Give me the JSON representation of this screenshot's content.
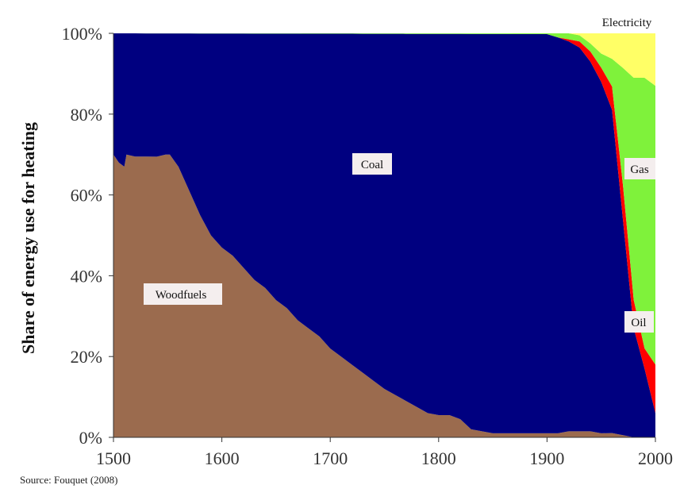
{
  "chart_data": {
    "type": "area",
    "stacked": true,
    "percent": true,
    "ylabel": "Share of energy use for heating",
    "xlim": [
      1500,
      2000
    ],
    "ylim": [
      0,
      100
    ],
    "x_ticks": [
      1500,
      1600,
      1700,
      1800,
      1900,
      2000
    ],
    "y_ticks": [
      0,
      20,
      40,
      60,
      80,
      100
    ],
    "y_tick_labels": [
      "0%",
      "20%",
      "40%",
      "60%",
      "80%",
      "100%"
    ],
    "grid": false,
    "source": "Source: Fouquet (2008)",
    "series": [
      {
        "name": "Woodfuels",
        "color": "#9b6b4e",
        "points": [
          [
            1500,
            70
          ],
          [
            1505,
            68
          ],
          [
            1510,
            67
          ],
          [
            1512,
            70
          ],
          [
            1520,
            69.5
          ],
          [
            1530,
            69.5
          ],
          [
            1540,
            69.5
          ],
          [
            1548,
            70
          ],
          [
            1552,
            70
          ],
          [
            1560,
            67
          ],
          [
            1570,
            61
          ],
          [
            1580,
            55
          ],
          [
            1590,
            50
          ],
          [
            1600,
            47
          ],
          [
            1610,
            45
          ],
          [
            1620,
            42
          ],
          [
            1630,
            39
          ],
          [
            1640,
            37
          ],
          [
            1650,
            34
          ],
          [
            1660,
            32
          ],
          [
            1670,
            29
          ],
          [
            1680,
            27
          ],
          [
            1690,
            25
          ],
          [
            1700,
            22
          ],
          [
            1710,
            20
          ],
          [
            1720,
            18
          ],
          [
            1730,
            16
          ],
          [
            1740,
            14
          ],
          [
            1750,
            12
          ],
          [
            1760,
            10.5
          ],
          [
            1770,
            9
          ],
          [
            1780,
            7.5
          ],
          [
            1790,
            6
          ],
          [
            1800,
            5.5
          ],
          [
            1810,
            5.5
          ],
          [
            1820,
            4.5
          ],
          [
            1830,
            2
          ],
          [
            1840,
            1.5
          ],
          [
            1850,
            1
          ],
          [
            1860,
            1
          ],
          [
            1870,
            1
          ],
          [
            1880,
            1
          ],
          [
            1890,
            1
          ],
          [
            1900,
            1
          ],
          [
            1910,
            1
          ],
          [
            1920,
            1.5
          ],
          [
            1930,
            1.5
          ],
          [
            1940,
            1.5
          ],
          [
            1950,
            1
          ],
          [
            1960,
            1
          ],
          [
            1970,
            0.5
          ],
          [
            1980,
            0
          ],
          [
            1990,
            0
          ],
          [
            2000,
            0
          ]
        ]
      },
      {
        "name": "Coal",
        "color": "#000080",
        "points": [
          [
            1500,
            30
          ],
          [
            1505,
            32
          ],
          [
            1510,
            33
          ],
          [
            1512,
            30
          ],
          [
            1520,
            30.5
          ],
          [
            1530,
            30.5
          ],
          [
            1540,
            30.5
          ],
          [
            1548,
            30
          ],
          [
            1552,
            30
          ],
          [
            1560,
            33
          ],
          [
            1570,
            39
          ],
          [
            1580,
            45
          ],
          [
            1590,
            50
          ],
          [
            1600,
            53
          ],
          [
            1610,
            55
          ],
          [
            1620,
            58
          ],
          [
            1630,
            61
          ],
          [
            1640,
            63
          ],
          [
            1650,
            66
          ],
          [
            1660,
            68
          ],
          [
            1670,
            71
          ],
          [
            1680,
            73
          ],
          [
            1690,
            75
          ],
          [
            1700,
            78
          ],
          [
            1710,
            80
          ],
          [
            1720,
            82
          ],
          [
            1730,
            84
          ],
          [
            1740,
            86
          ],
          [
            1750,
            88
          ],
          [
            1760,
            89.5
          ],
          [
            1770,
            91
          ],
          [
            1780,
            92.5
          ],
          [
            1790,
            94
          ],
          [
            1800,
            94.5
          ],
          [
            1810,
            94.5
          ],
          [
            1820,
            95.5
          ],
          [
            1830,
            98
          ],
          [
            1840,
            98.5
          ],
          [
            1850,
            99
          ],
          [
            1860,
            99
          ],
          [
            1870,
            99
          ],
          [
            1880,
            99
          ],
          [
            1890,
            99
          ],
          [
            1900,
            98.8
          ],
          [
            1910,
            98
          ],
          [
            1920,
            96.5
          ],
          [
            1930,
            94.5
          ],
          [
            1940,
            91.5
          ],
          [
            1950,
            87
          ],
          [
            1960,
            76
          ],
          [
            1970,
            50
          ],
          [
            1980,
            27
          ],
          [
            1990,
            17
          ],
          [
            2000,
            6
          ]
        ]
      },
      {
        "name": "Oil",
        "color": "#ff0000",
        "points": [
          [
            1500,
            0
          ],
          [
            1900,
            0
          ],
          [
            1910,
            0
          ],
          [
            1920,
            0.5
          ],
          [
            1930,
            1.5
          ],
          [
            1940,
            2.5
          ],
          [
            1950,
            3.5
          ],
          [
            1960,
            5.5
          ],
          [
            1970,
            8
          ],
          [
            1980,
            7
          ],
          [
            1990,
            5
          ],
          [
            2000,
            12
          ]
        ]
      },
      {
        "name": "Gas",
        "color": "#7ff23b",
        "points": [
          [
            1500,
            0
          ],
          [
            1900,
            0.2
          ],
          [
            1910,
            1
          ],
          [
            1920,
            1.5
          ],
          [
            1930,
            1.5
          ],
          [
            1940,
            2
          ],
          [
            1950,
            3.5
          ],
          [
            1960,
            6.5
          ],
          [
            1970,
            27
          ],
          [
            1980,
            55
          ],
          [
            1990,
            67
          ],
          [
            2000,
            69
          ]
        ]
      },
      {
        "name": "Electricity",
        "color": "#ffff66",
        "points": [
          [
            1500,
            0
          ],
          [
            1900,
            0
          ],
          [
            1910,
            0
          ],
          [
            1920,
            0
          ],
          [
            1930,
            0.5
          ],
          [
            1940,
            2.5
          ],
          [
            1950,
            5
          ],
          [
            1960,
            6
          ],
          [
            1970,
            8
          ],
          [
            1980,
            11
          ],
          [
            1990,
            11
          ],
          [
            2000,
            13
          ]
        ]
      }
    ],
    "area_labels": [
      "Woodfuels",
      "Coal",
      "Gas",
      "Oil",
      "Electricity"
    ]
  }
}
